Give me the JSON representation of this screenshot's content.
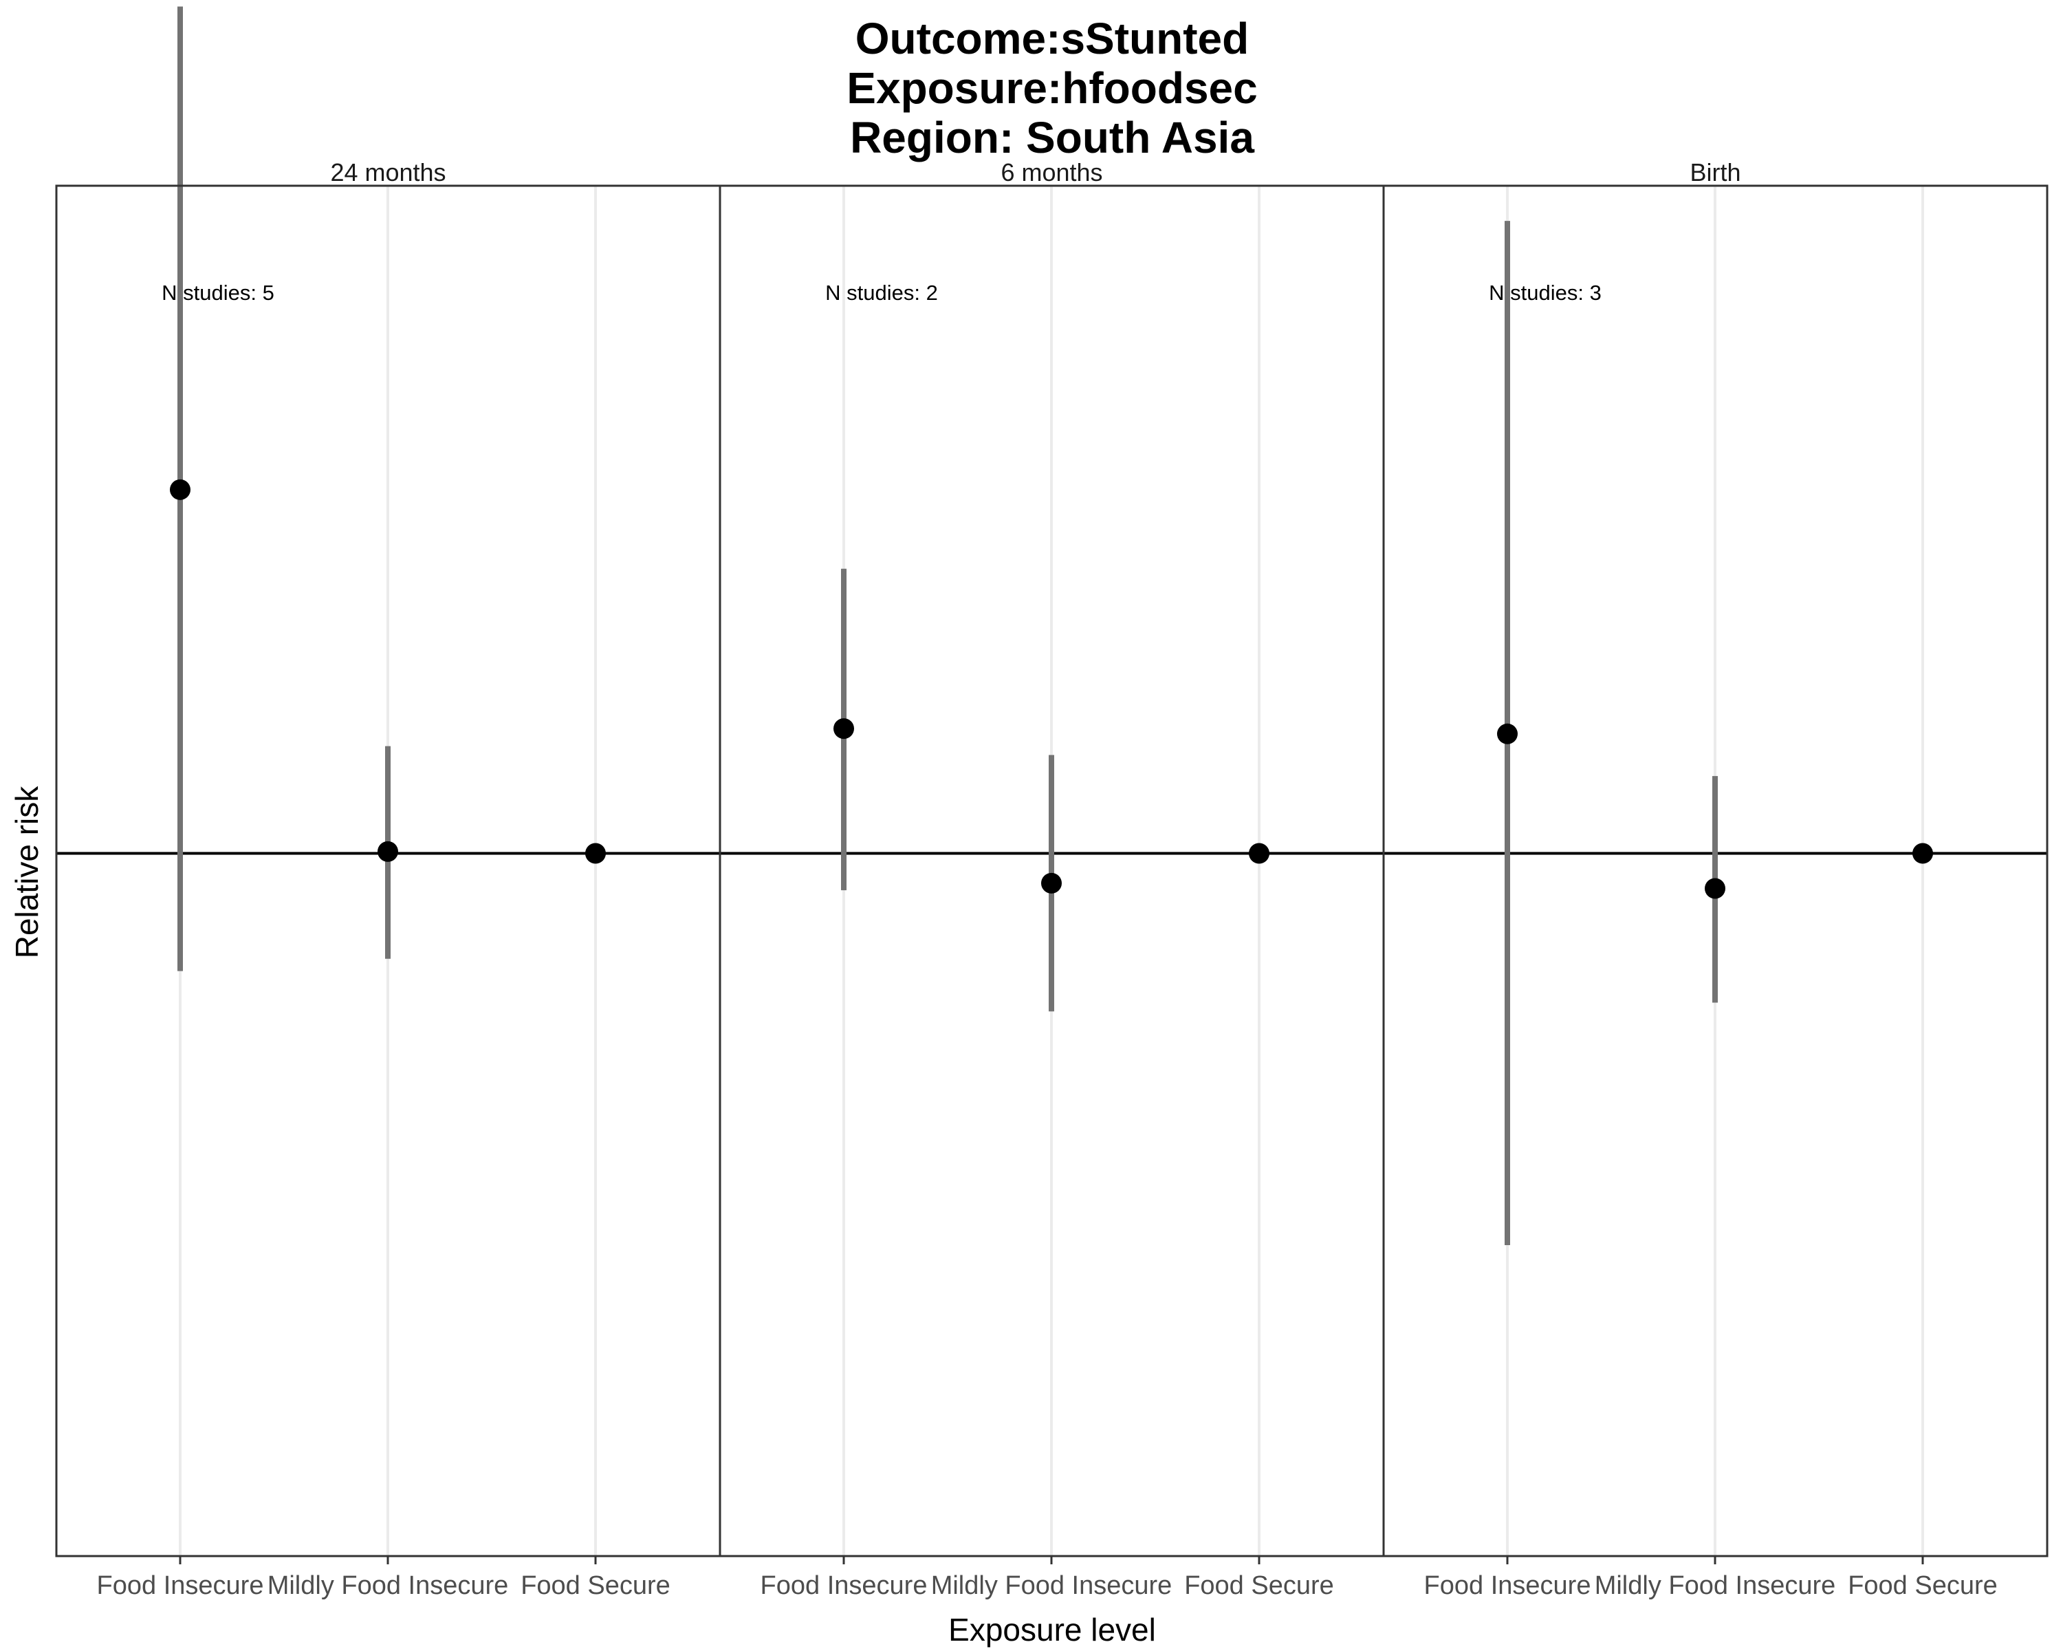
{
  "chart_data": {
    "type": "scatter",
    "title_lines": [
      "Outcome:sStunted",
      "Exposure:hfoodsec",
      "Region: South Asia"
    ],
    "xlabel": "Exposure level",
    "ylabel": "Relative risk",
    "categories": [
      "Food Insecure",
      "Mildly Food Insecure",
      "Food Secure"
    ],
    "reference_line": 1.0,
    "y_tick_labels_shown": false,
    "ylim": [
      0.6,
      1.38
    ],
    "grid": "vertical major gridlines",
    "colors": {
      "point": "#000000",
      "interval": "#737373",
      "reference": "#000000",
      "grid": "#ebebeb",
      "panel_border": "#333333"
    },
    "panels": [
      {
        "label": "24 months",
        "note": "N studies: 5",
        "points": [
          {
            "category": "Food Insecure",
            "estimate": 1.207,
            "ci_lower": 0.933,
            "ci_upper": 1.482
          },
          {
            "category": "Mildly Food Insecure",
            "estimate": 1.001,
            "ci_lower": 0.94,
            "ci_upper": 1.061
          },
          {
            "category": "Food Secure",
            "estimate": 1.0,
            "ci_lower": 1.0,
            "ci_upper": 1.0
          }
        ]
      },
      {
        "label": "6 months",
        "note": "N studies: 2",
        "points": [
          {
            "category": "Food Insecure",
            "estimate": 1.071,
            "ci_lower": 0.979,
            "ci_upper": 1.162
          },
          {
            "category": "Mildly Food Insecure",
            "estimate": 0.983,
            "ci_lower": 0.91,
            "ci_upper": 1.056
          },
          {
            "category": "Food Secure",
            "estimate": 1.0,
            "ci_lower": 1.0,
            "ci_upper": 1.0
          }
        ]
      },
      {
        "label": "Birth",
        "note": "N studies: 3",
        "points": [
          {
            "category": "Food Insecure",
            "estimate": 1.068,
            "ci_lower": 0.777,
            "ci_upper": 1.36
          },
          {
            "category": "Mildly Food Insecure",
            "estimate": 0.98,
            "ci_lower": 0.915,
            "ci_upper": 1.044
          },
          {
            "category": "Food Secure",
            "estimate": 1.0,
            "ci_lower": 1.0,
            "ci_upper": 1.0
          }
        ]
      }
    ]
  }
}
